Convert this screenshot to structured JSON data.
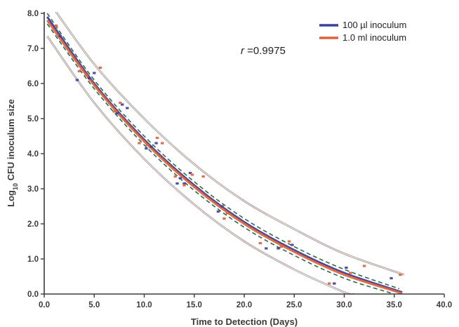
{
  "chart_data": {
    "type": "scatter",
    "xlabel": "Time to Detection (Days)",
    "ylabel_main": "Log",
    "ylabel_sub": "10",
    "ylabel_rest": " CFU inoculum size",
    "xlim": [
      0,
      40
    ],
    "ylim": [
      0,
      8
    ],
    "x_ticks": [
      "0.0",
      "5.0",
      "10.0",
      "15.0",
      "20.0",
      "25.0",
      "30.0",
      "35.0",
      "40.0"
    ],
    "y_ticks": [
      "0.0",
      "1.0",
      "2.0",
      "3.0",
      "4.0",
      "5.0",
      "6.0",
      "7.0",
      "8.0"
    ],
    "annotation": {
      "italic": "r",
      "text": " =0.9975"
    },
    "colors": {
      "blue": "#3b3f9e",
      "orange": "#e0603a",
      "green_dashed": "#2e6b45",
      "band": "#9a8a86",
      "axis": "#3b3b3b"
    },
    "legend_position": "top-right",
    "series": [
      {
        "name": "100 µl inoculum",
        "color": "#3b3f9e",
        "points": [
          [
            1.6,
            7.35
          ],
          [
            3.3,
            6.1
          ],
          [
            4.5,
            6.15
          ],
          [
            5.0,
            6.3
          ],
          [
            7.3,
            5.15
          ],
          [
            7.8,
            5.4
          ],
          [
            8.3,
            5.3
          ],
          [
            10.2,
            4.15
          ],
          [
            10.7,
            4.2
          ],
          [
            11.2,
            4.3
          ],
          [
            13.3,
            3.15
          ],
          [
            13.6,
            3.3
          ],
          [
            14.0,
            3.15
          ],
          [
            14.6,
            3.45
          ],
          [
            17.4,
            2.35
          ],
          [
            17.8,
            2.5
          ],
          [
            22.2,
            1.3
          ],
          [
            23.4,
            1.3
          ],
          [
            24.8,
            1.4
          ],
          [
            29.0,
            0.3
          ],
          [
            30.2,
            0.75
          ],
          [
            34.7,
            0.45
          ]
        ],
        "fit": [
          [
            0.3,
            7.9
          ],
          [
            5,
            6.0
          ],
          [
            10,
            4.4
          ],
          [
            15,
            3.1
          ],
          [
            20,
            2.05
          ],
          [
            25,
            1.25
          ],
          [
            30,
            0.6
          ],
          [
            35.8,
            0.05
          ]
        ]
      },
      {
        "name": "1.0 ml inoculum",
        "color": "#e0603a",
        "points": [
          [
            1.2,
            7.65
          ],
          [
            3.5,
            6.35
          ],
          [
            4.2,
            6.25
          ],
          [
            5.6,
            6.45
          ],
          [
            7.0,
            5.2
          ],
          [
            7.6,
            5.45
          ],
          [
            9.5,
            4.3
          ],
          [
            10.3,
            4.25
          ],
          [
            11.3,
            4.45
          ],
          [
            11.8,
            4.3
          ],
          [
            13.1,
            3.35
          ],
          [
            14.0,
            3.1
          ],
          [
            14.8,
            3.4
          ],
          [
            15.9,
            3.35
          ],
          [
            18.0,
            2.15
          ],
          [
            18.3,
            2.3
          ],
          [
            21.6,
            1.45
          ],
          [
            23.7,
            1.35
          ],
          [
            24.5,
            1.5
          ],
          [
            28.5,
            0.3
          ],
          [
            30.6,
            0.6
          ],
          [
            32.0,
            0.8
          ],
          [
            35.6,
            0.55
          ]
        ],
        "fit": [
          [
            0.3,
            7.8
          ],
          [
            5,
            5.95
          ],
          [
            10,
            4.35
          ],
          [
            15,
            3.05
          ],
          [
            20,
            2.0
          ],
          [
            25,
            1.2
          ],
          [
            30,
            0.55
          ],
          [
            35.8,
            0.02
          ]
        ]
      }
    ],
    "confidence_band": {
      "upper": [
        [
          0.3,
          8.4
        ],
        [
          5,
          6.55
        ],
        [
          10,
          5.0
        ],
        [
          15,
          3.7
        ],
        [
          20,
          2.65
        ],
        [
          25,
          1.85
        ],
        [
          30,
          1.15
        ],
        [
          36,
          0.55
        ]
      ],
      "lower": [
        [
          0.3,
          7.35
        ],
        [
          5,
          5.45
        ],
        [
          10,
          3.85
        ],
        [
          15,
          2.55
        ],
        [
          20,
          1.5
        ],
        [
          25,
          0.7
        ],
        [
          30,
          0.05
        ],
        [
          31,
          0
        ]
      ],
      "inner_upper": [
        [
          0.3,
          8.0
        ],
        [
          5,
          6.1
        ],
        [
          10,
          4.5
        ],
        [
          15,
          3.2
        ],
        [
          20,
          2.15
        ],
        [
          25,
          1.35
        ],
        [
          30,
          0.7
        ],
        [
          35.5,
          0.15
        ]
      ],
      "inner_lower": [
        [
          0.3,
          7.7
        ],
        [
          5,
          5.85
        ],
        [
          10,
          4.25
        ],
        [
          15,
          2.95
        ],
        [
          20,
          1.9
        ],
        [
          25,
          1.1
        ],
        [
          30,
          0.45
        ],
        [
          35,
          0
        ]
      ]
    }
  }
}
